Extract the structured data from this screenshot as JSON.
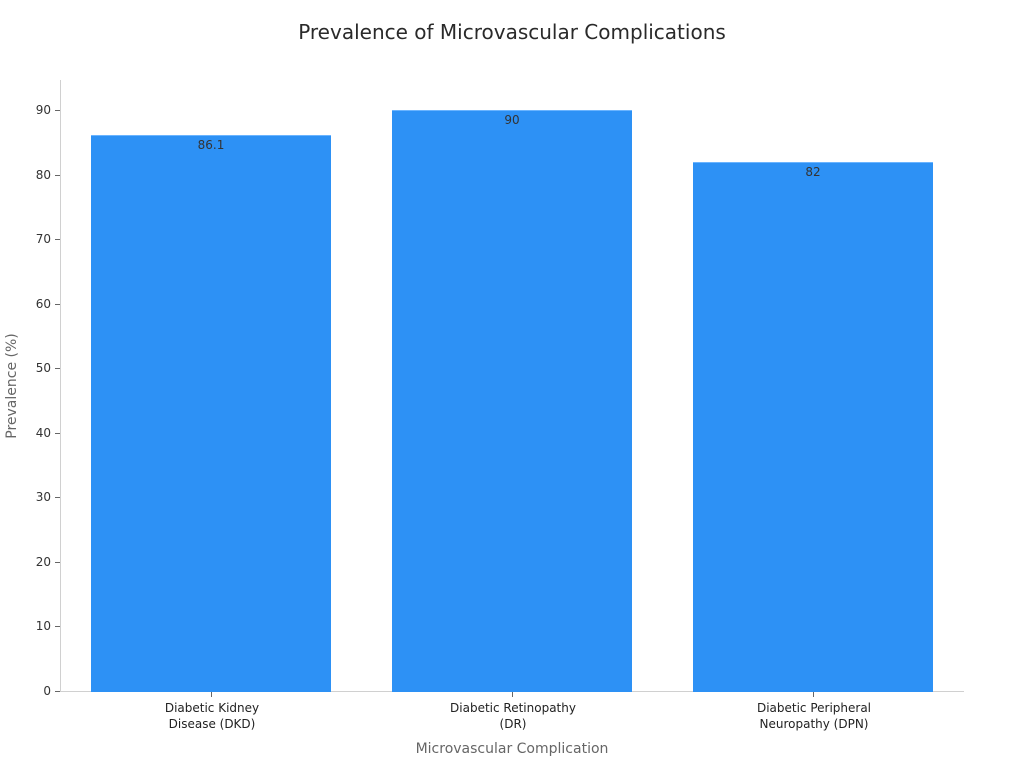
{
  "chart_data": {
    "type": "bar",
    "title": "Prevalence of Microvascular Complications",
    "xlabel": "Microvascular Complication",
    "ylabel": "Prevalence (%)",
    "categories": [
      "Diabetic Kidney Disease (DKD)",
      "Diabetic Retinopathy (DR)",
      "Diabetic Peripheral Neuropathy (DPN)"
    ],
    "category_lines": [
      [
        "Diabetic Kidney",
        "Disease (DKD)"
      ],
      [
        "Diabetic Retinopathy",
        "(DR)"
      ],
      [
        "Diabetic Peripheral",
        "Neuropathy (DPN)"
      ]
    ],
    "values": [
      86.1,
      90,
      82
    ],
    "data_labels": [
      "86.1",
      "90",
      "82"
    ],
    "ylim": [
      0,
      95
    ],
    "yticks": [
      0,
      10,
      20,
      30,
      40,
      50,
      60,
      70,
      80,
      90
    ],
    "grid": false,
    "legend": null,
    "bar_color": "#2d91f5"
  }
}
